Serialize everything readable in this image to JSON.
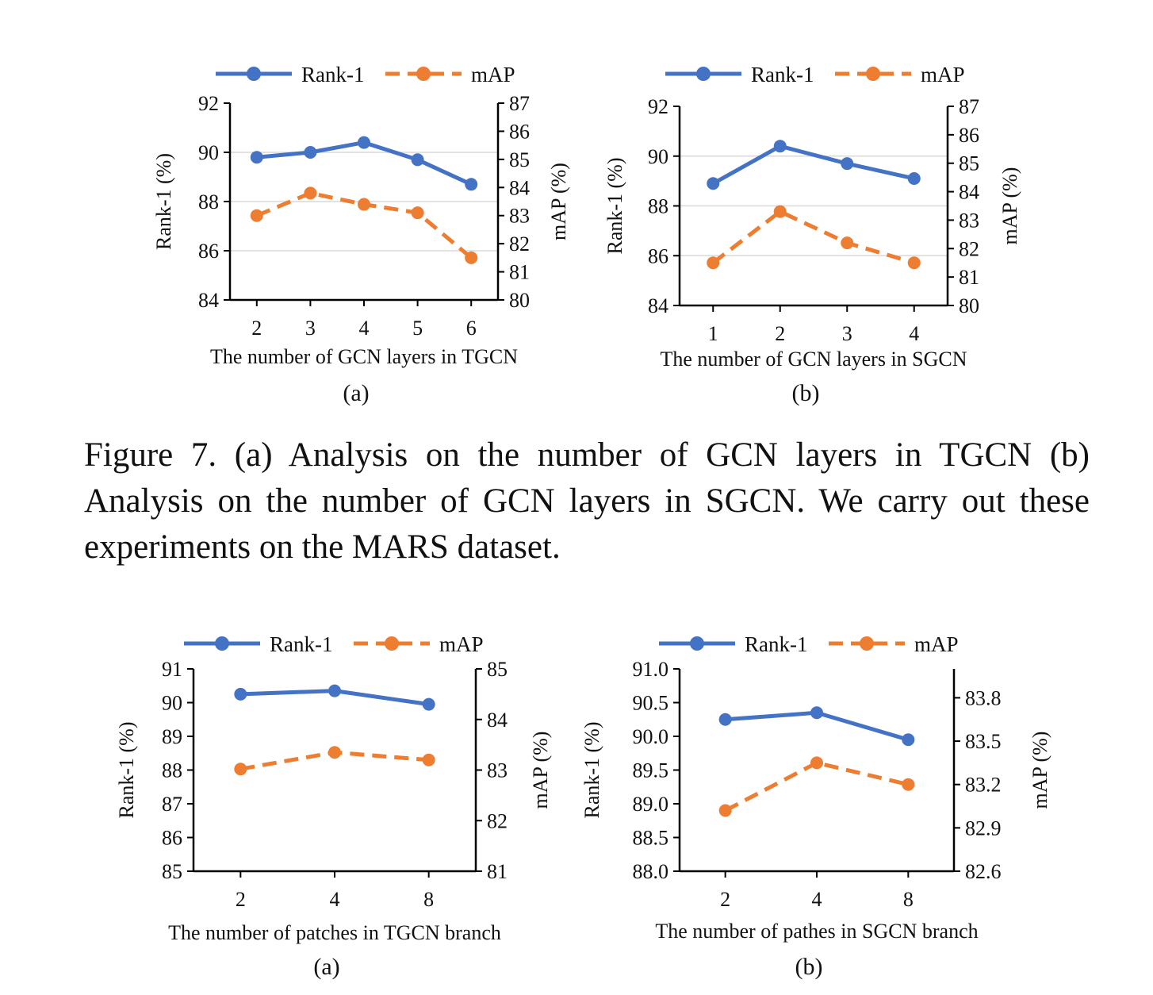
{
  "figure_caption": "Figure 7. (a) Analysis on the number of GCN layers in TGCN (b) Analysis on the number of GCN layers in SGCN. We carry out these experiments on the MARS dataset.",
  "colors": {
    "rank1": "#4472C4",
    "map": "#ED7D31",
    "grid": "#d9d9d9",
    "axis": "#000000"
  },
  "chart_data": [
    {
      "type": "line",
      "panel": "(a)",
      "title": "",
      "xlabel": "The number of GCN layers in TGCN",
      "ylabel_left": "Rank-1 (%)",
      "ylabel_right": "mAP (%)",
      "categories": [
        "2",
        "3",
        "4",
        "5",
        "6"
      ],
      "ylim_left": [
        84,
        92
      ],
      "yticks_left": [
        "84",
        "86",
        "88",
        "90",
        "92"
      ],
      "ylim_right": [
        80,
        87
      ],
      "yticks_right": [
        "80",
        "81",
        "82",
        "83",
        "84",
        "85",
        "86",
        "87"
      ],
      "grid": true,
      "legend": "top-center",
      "series": [
        {
          "name": "Rank-1",
          "axis": "left",
          "style": "solid",
          "values": [
            89.8,
            90.0,
            90.4,
            89.7,
            88.7
          ]
        },
        {
          "name": "mAP",
          "axis": "right",
          "style": "dashed",
          "values": [
            83.0,
            83.8,
            83.4,
            83.1,
            81.5
          ]
        }
      ]
    },
    {
      "type": "line",
      "panel": "(b)",
      "title": "",
      "xlabel": "The number of GCN layers in SGCN",
      "ylabel_left": "Rank-1 (%)",
      "ylabel_right": "mAP (%)",
      "categories": [
        "1",
        "2",
        "3",
        "4"
      ],
      "ylim_left": [
        84,
        92
      ],
      "yticks_left": [
        "84",
        "86",
        "88",
        "90",
        "92"
      ],
      "ylim_right": [
        80,
        87
      ],
      "yticks_right": [
        "80",
        "81",
        "82",
        "83",
        "84",
        "85",
        "86",
        "87"
      ],
      "grid": true,
      "legend": "top-center",
      "series": [
        {
          "name": "Rank-1",
          "axis": "left",
          "style": "solid",
          "values": [
            88.9,
            90.4,
            89.7,
            89.1
          ]
        },
        {
          "name": "mAP",
          "axis": "right",
          "style": "dashed",
          "values": [
            81.5,
            83.3,
            82.2,
            81.5
          ]
        }
      ]
    },
    {
      "type": "line",
      "panel": "(a)",
      "title": "",
      "xlabel": "The number of patches in TGCN branch",
      "ylabel_left": "Rank-1 (%)",
      "ylabel_right": "mAP (%)",
      "categories": [
        "2",
        "4",
        "8"
      ],
      "ylim_left": [
        85,
        91
      ],
      "yticks_left": [
        "85",
        "86",
        "87",
        "88",
        "89",
        "90",
        "91"
      ],
      "ylim_right": [
        81,
        85
      ],
      "yticks_right": [
        "81",
        "82",
        "83",
        "84",
        "85"
      ],
      "grid": false,
      "legend": "top-center",
      "series": [
        {
          "name": "Rank-1",
          "axis": "left",
          "style": "solid",
          "values": [
            90.25,
            90.35,
            89.95
          ]
        },
        {
          "name": "mAP",
          "axis": "right",
          "style": "dashed",
          "values": [
            83.02,
            83.35,
            83.2
          ]
        }
      ]
    },
    {
      "type": "line",
      "panel": "(b)",
      "title": "",
      "xlabel": "The number of pathes in SGCN branch",
      "ylabel_left": "Rank-1 (%)",
      "ylabel_right": "mAP (%)",
      "categories": [
        "2",
        "4",
        "8"
      ],
      "ylim_left": [
        88.0,
        91.0
      ],
      "yticks_left": [
        "88.0",
        "88.5",
        "89.0",
        "89.5",
        "90.0",
        "90.5",
        "91.0"
      ],
      "ylim_right": [
        82.6,
        84.0
      ],
      "yticks_right": [
        "82.6",
        "82.9",
        "83.2",
        "83.5",
        "83.8"
      ],
      "grid": false,
      "legend": "top-center",
      "series": [
        {
          "name": "Rank-1",
          "axis": "left",
          "style": "solid",
          "values": [
            90.25,
            90.35,
            89.95
          ]
        },
        {
          "name": "mAP",
          "axis": "right",
          "style": "dashed",
          "values": [
            83.02,
            83.35,
            83.2
          ]
        }
      ]
    }
  ]
}
